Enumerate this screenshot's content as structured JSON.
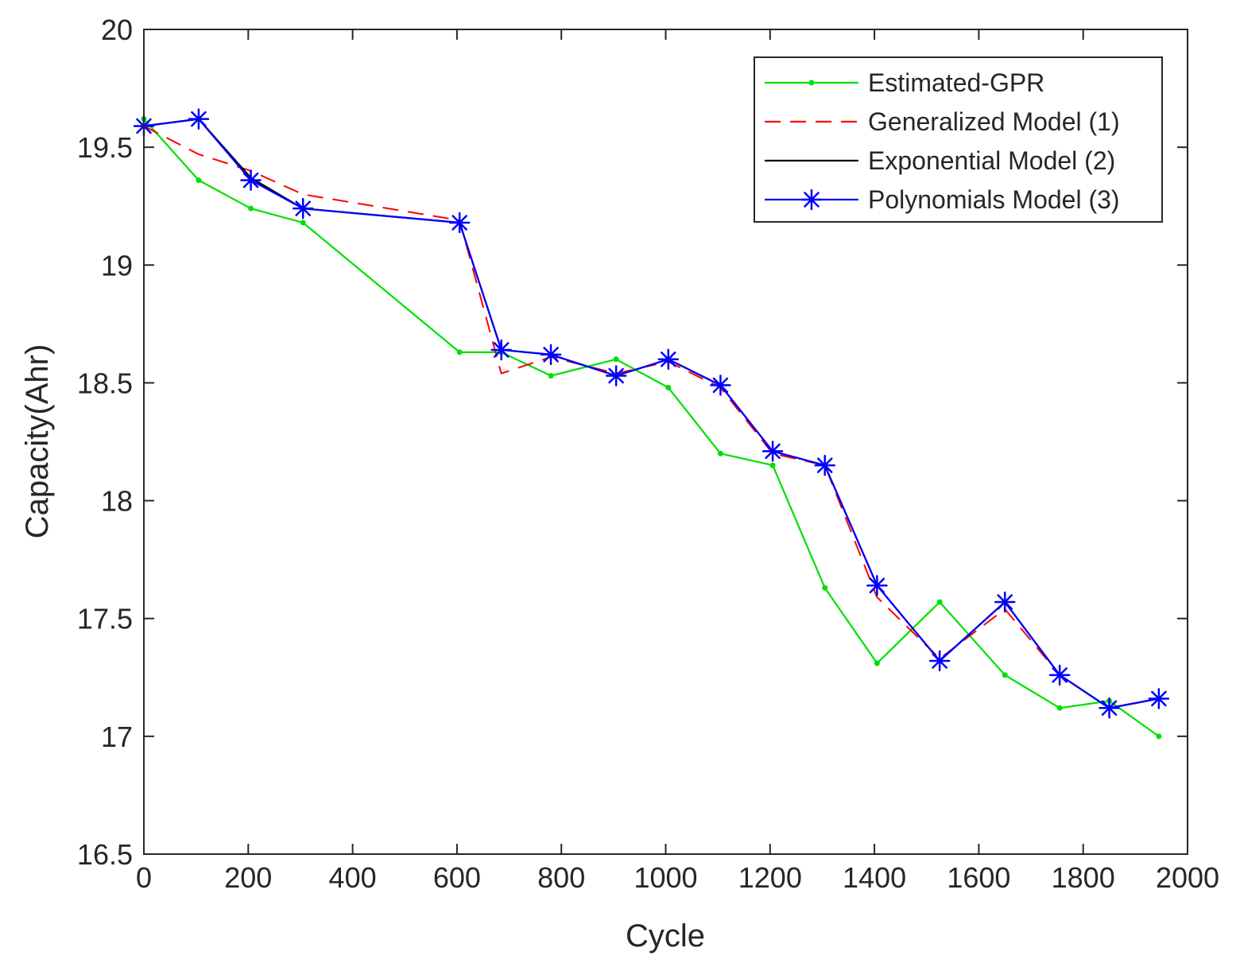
{
  "chart_data": {
    "type": "line",
    "title": "",
    "xlabel": "Cycle",
    "ylabel": "Capacity(Ahr)",
    "xlim": [
      0,
      2000
    ],
    "ylim": [
      16.5,
      20
    ],
    "xticks": [
      0,
      200,
      400,
      600,
      800,
      1000,
      1200,
      1400,
      1600,
      1800,
      2000
    ],
    "yticks": [
      16.5,
      17,
      17.5,
      18,
      18.5,
      19,
      19.5,
      20
    ],
    "xtick_labels": [
      "0",
      "200",
      "400",
      "600",
      "800",
      "1000",
      "1200",
      "1400",
      "1600",
      "1800",
      "2000"
    ],
    "ytick_labels": [
      "16.5",
      "17",
      "17.5",
      "18",
      "18.5",
      "19",
      "19.5",
      "20"
    ],
    "grid": false,
    "legend_position": "top-right",
    "series": [
      {
        "name": "Estimated-GPR",
        "color": "#00e000",
        "style": "solid",
        "marker": "dot",
        "x": [
          0,
          105,
          205,
          305,
          605,
          685,
          780,
          905,
          1005,
          1105,
          1205,
          1305,
          1405,
          1525,
          1650,
          1755,
          1850,
          1945
        ],
        "y": [
          19.62,
          19.36,
          19.24,
          19.18,
          18.63,
          18.63,
          18.53,
          18.6,
          18.48,
          18.2,
          18.15,
          17.63,
          17.31,
          17.57,
          17.26,
          17.12,
          17.15,
          17.0
        ]
      },
      {
        "name": "Generalized Model (1)",
        "color": "#ff0000",
        "style": "dashed",
        "marker": "none",
        "x": [
          0,
          105,
          205,
          305,
          605,
          685,
          780,
          905,
          1005,
          1105,
          1205,
          1305,
          1405,
          1525,
          1650,
          1755,
          1850,
          1945
        ],
        "y": [
          19.59,
          19.47,
          19.4,
          19.3,
          19.19,
          18.54,
          18.61,
          18.54,
          18.59,
          18.48,
          18.2,
          18.15,
          17.59,
          17.33,
          17.54,
          17.26,
          17.12,
          17.16
        ]
      },
      {
        "name": "Exponential Model (2)",
        "color": "#000000",
        "style": "solid",
        "marker": "none",
        "x": [
          0,
          105,
          205,
          305,
          605,
          685,
          780,
          905,
          1005,
          1105,
          1205,
          1305,
          1405,
          1525,
          1650,
          1755,
          1850,
          1945
        ],
        "y": [
          19.59,
          19.62,
          19.37,
          19.24,
          19.18,
          18.64,
          18.62,
          18.53,
          18.6,
          18.49,
          18.21,
          18.15,
          17.64,
          17.32,
          17.57,
          17.26,
          17.12,
          17.16
        ]
      },
      {
        "name": "Polynomials Model (3)",
        "color": "#0000ff",
        "style": "solid",
        "marker": "asterisk",
        "x": [
          0,
          105,
          205,
          305,
          605,
          685,
          780,
          905,
          1005,
          1105,
          1205,
          1305,
          1405,
          1525,
          1650,
          1755,
          1850,
          1945
        ],
        "y": [
          19.59,
          19.62,
          19.36,
          19.24,
          19.18,
          18.64,
          18.62,
          18.53,
          18.6,
          18.49,
          18.21,
          18.15,
          17.64,
          17.32,
          17.57,
          17.26,
          17.12,
          17.16
        ]
      }
    ]
  }
}
